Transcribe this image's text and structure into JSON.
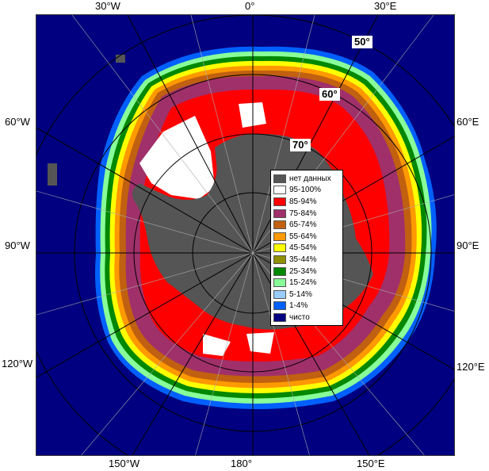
{
  "map": {
    "longitude_labels": {
      "w30": "30°W",
      "zero": "0°",
      "e30": "30°E",
      "w60": "60°W",
      "e60": "60°E",
      "w90": "90°W",
      "e90": "90°E",
      "w120": "120°W",
      "e120": "120°E",
      "w150": "150°W",
      "deg180": "180°",
      "e150": "150°E"
    },
    "latitude_labels": {
      "lat50": "50°",
      "lat60": "60°",
      "lat70": "70°"
    }
  },
  "legend": {
    "items": [
      {
        "label": "нет данных",
        "color": "#555555"
      },
      {
        "label": "95-100%",
        "color": "#ffffff"
      },
      {
        "label": "85-94%",
        "color": "#ff0000"
      },
      {
        "label": "75-84%",
        "color": "#a0306a"
      },
      {
        "label": "65-74%",
        "color": "#c06010"
      },
      {
        "label": "55-64%",
        "color": "#ff9900"
      },
      {
        "label": "45-54%",
        "color": "#ffff00"
      },
      {
        "label": "35-44%",
        "color": "#909000"
      },
      {
        "label": "25-34%",
        "color": "#008800"
      },
      {
        "label": "15-24%",
        "color": "#88ff99"
      },
      {
        "label": "5-14%",
        "color": "#99ccff"
      },
      {
        "label": "1-4%",
        "color": "#0060ff"
      },
      {
        "label": "чисто",
        "color": "#000080"
      }
    ]
  }
}
